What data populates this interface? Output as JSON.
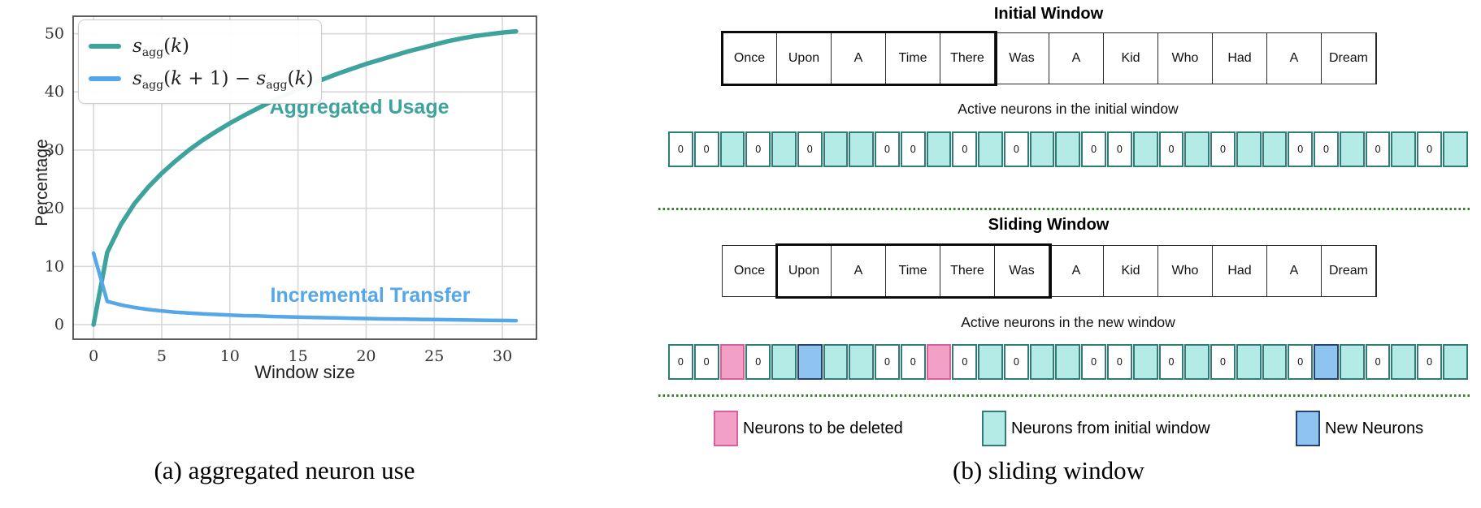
{
  "panel_a": {
    "caption": "(a) aggregated neuron use"
  },
  "chart_data": {
    "type": "line",
    "title": "",
    "xlabel": "Window size",
    "ylabel": "Percentage",
    "xlim": [
      -1.5,
      32.5
    ],
    "ylim": [
      -2.5,
      53
    ],
    "xticks": [
      0,
      5,
      10,
      15,
      20,
      25,
      30
    ],
    "yticks": [
      0,
      10,
      20,
      30,
      40,
      50
    ],
    "grid": true,
    "legend_position": "upper-left",
    "x": [
      0,
      1,
      2,
      3,
      4,
      5,
      6,
      7,
      8,
      9,
      10,
      11,
      12,
      13,
      14,
      15,
      16,
      17,
      18,
      19,
      20,
      21,
      22,
      23,
      24,
      25,
      26,
      27,
      28,
      29,
      30,
      31
    ],
    "series": [
      {
        "name": "s_agg(k)",
        "name_segments": [
          [
            "i",
            "s"
          ],
          [
            "sub",
            "agg"
          ],
          [
            "n",
            "("
          ],
          [
            "i",
            "k"
          ],
          [
            "n",
            ")"
          ]
        ],
        "color": "#3fa39d",
        "values": [
          0,
          12.4,
          17.2,
          20.8,
          23.6,
          26.0,
          28.1,
          30.0,
          31.7,
          33.2,
          34.6,
          35.9,
          37.1,
          38.3,
          39.4,
          40.4,
          41.4,
          42.3,
          43.2,
          44.0,
          44.8,
          45.5,
          46.2,
          46.9,
          47.5,
          48.1,
          48.7,
          49.2,
          49.6,
          49.9,
          50.2,
          50.4
        ],
        "annotation": {
          "text": "Aggregated Usage",
          "x": 19.5,
          "y": 37.5
        }
      },
      {
        "name": "s_agg(k+1) − s_agg(k)",
        "name_segments": [
          [
            "i",
            "s"
          ],
          [
            "sub",
            "agg"
          ],
          [
            "n",
            "("
          ],
          [
            "i",
            "k"
          ],
          [
            "n",
            " + 1) − "
          ],
          [
            "i",
            "s"
          ],
          [
            "sub",
            "agg"
          ],
          [
            "n",
            "("
          ],
          [
            "i",
            "k"
          ],
          [
            "n",
            ")"
          ]
        ],
        "color": "#55a7e8",
        "values": [
          12.3,
          4.0,
          3.4,
          2.95,
          2.6,
          2.35,
          2.15,
          2.0,
          1.85,
          1.75,
          1.65,
          1.55,
          1.5,
          1.4,
          1.35,
          1.3,
          1.25,
          1.2,
          1.15,
          1.1,
          1.05,
          1.0,
          0.97,
          0.94,
          0.9,
          0.87,
          0.84,
          0.81,
          0.78,
          0.75,
          0.72,
          0.7
        ],
        "annotation": {
          "text": "Incremental Transfer",
          "x": 20.3,
          "y": 5.2
        }
      }
    ]
  },
  "panel_b": {
    "caption": "(b) sliding window",
    "sections": [
      {
        "title": "Initial Window",
        "words": [
          "Once",
          "Upon",
          "A",
          "Time",
          "There",
          "Was",
          "A",
          "Kid",
          "Who",
          "Had",
          "A",
          "Dream"
        ],
        "window_start": 0,
        "window_len": 5,
        "neurons_label": "Active neurons in the initial window",
        "neurons": "00T0T0TT00T0T0TT00T0T0TT00T0T0T"
      },
      {
        "title": "Sliding Window",
        "words": [
          "Once",
          "Upon",
          "A",
          "Time",
          "There",
          "Was",
          "A",
          "Kid",
          "Who",
          "Had",
          "A",
          "Dream"
        ],
        "window_start": 1,
        "window_len": 5,
        "neurons_label": "Active neurons in the new window",
        "neurons": "00P0TBTT00P0T0TT00T0T0TT0BT0T0T"
      }
    ],
    "cell_styles": {
      "T": {
        "fill": "#b5ebe6",
        "border": "#2e7d78"
      },
      "0": {
        "fill": "#ffffff",
        "border": "#2e7d78",
        "label": "0"
      },
      "P": {
        "fill": "#f3a0c7",
        "border": "#d9609d"
      },
      "B": {
        "fill": "#8fc3f0",
        "border": "#24426f"
      }
    },
    "legend": [
      {
        "key": "P",
        "label": "Neurons to be deleted"
      },
      {
        "key": "T",
        "label": "Neurons from initial window"
      },
      {
        "key": "B",
        "label": "New Neurons"
      }
    ],
    "divider_color": "#3a7d2f"
  }
}
